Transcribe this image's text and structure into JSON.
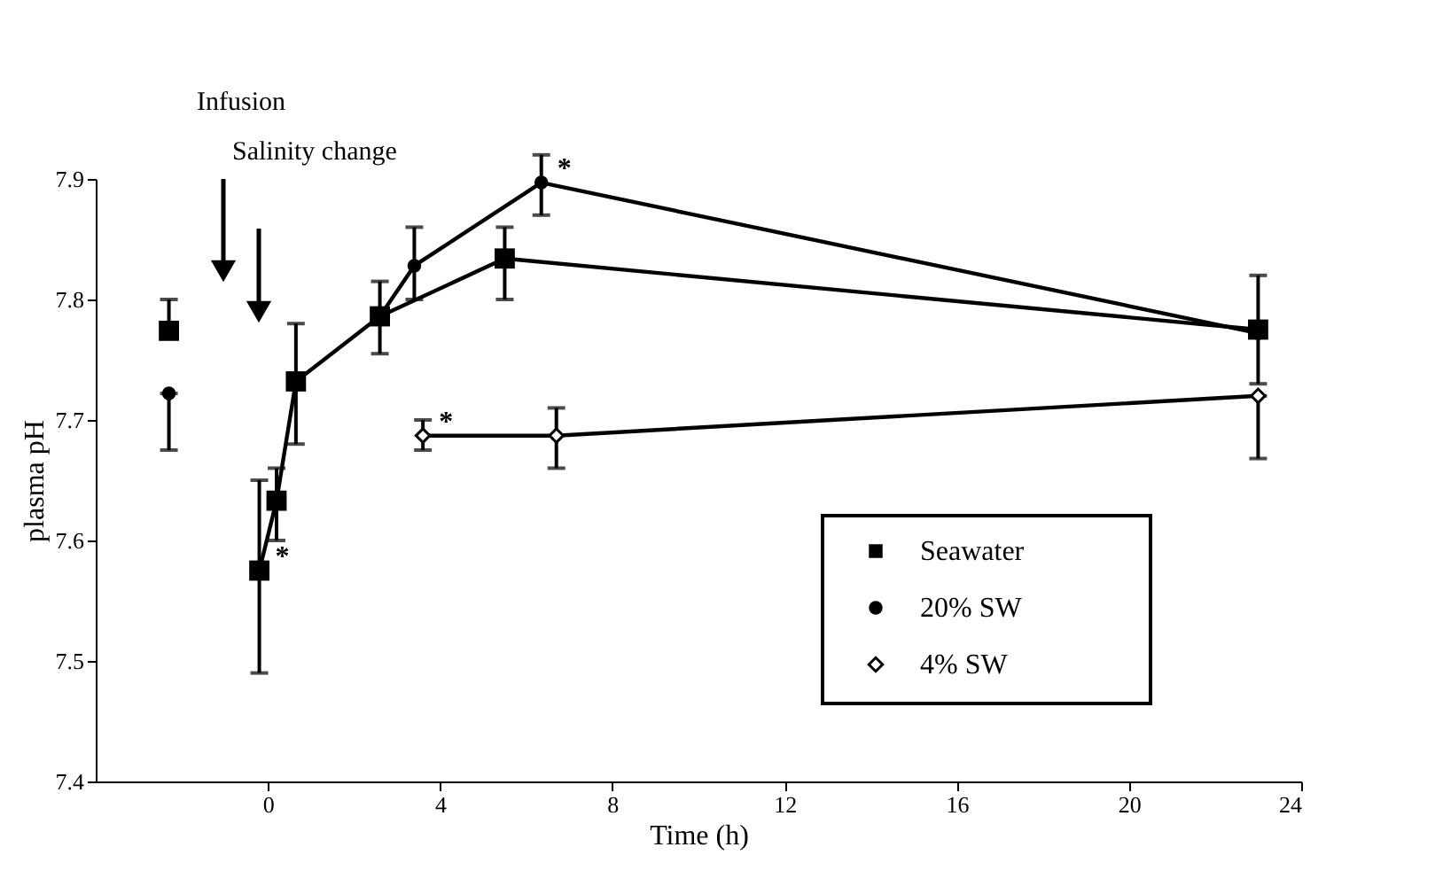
{
  "chart_data": {
    "type": "line",
    "xlabel": "Time (h)",
    "ylabel": "plasma pH",
    "xlim": [
      -4,
      24
    ],
    "xticks": [
      0,
      4,
      8,
      12,
      16,
      20,
      24
    ],
    "ylim": [
      7.4,
      7.9
    ],
    "yticks": [
      7.4,
      7.5,
      7.6,
      7.7,
      7.8,
      7.9
    ],
    "grid": false,
    "legend": "bottom right",
    "line_style": "solid",
    "series": [
      {
        "name": "Seawater",
        "color": "#000000",
        "marker": "square",
        "x": [
          -2.3,
          null,
          -0.2,
          0.2,
          0.65,
          2.6,
          5.5,
          23.0
        ],
        "values": [
          7.774,
          null,
          7.575,
          7.633,
          7.732,
          7.786,
          7.834,
          7.775
        ],
        "errors": [
          [
            7.774,
            7.8
          ],
          null,
          [
            7.49,
            7.65
          ],
          [
            7.6,
            7.66
          ],
          [
            7.68,
            7.78
          ],
          [
            7.755,
            7.815
          ],
          [
            7.8,
            7.86
          ],
          [
            7.73,
            7.82
          ]
        ]
      },
      {
        "name": "20% SW",
        "color": "#000000",
        "marker": "circle",
        "x": [
          -2.3,
          null,
          2.6,
          3.4,
          6.35,
          23.0
        ],
        "values": [
          7.722,
          null,
          7.786,
          7.828,
          7.897,
          7.772
        ],
        "errors": [
          [
            7.675,
            7.722
          ],
          null,
          null,
          [
            7.8,
            7.86
          ],
          [
            7.87,
            7.92
          ],
          null
        ]
      },
      {
        "name": "4% SW",
        "color": "#000000",
        "marker": "diamond",
        "x": [
          3.6,
          6.7,
          23.0
        ],
        "values": [
          7.687,
          7.687,
          7.72
        ],
        "errors": [
          [
            7.675,
            7.7
          ],
          [
            7.66,
            7.71
          ],
          [
            7.668,
            7.72
          ]
        ]
      }
    ],
    "annotations": [
      "Infusion",
      "Salinity change",
      {
        "text": "*",
        "x": -0.2,
        "y": 7.575
      },
      {
        "text": "*",
        "x": 6.35,
        "y": 7.897
      },
      {
        "text": "*",
        "x": 3.6,
        "y": 7.687
      }
    ]
  }
}
